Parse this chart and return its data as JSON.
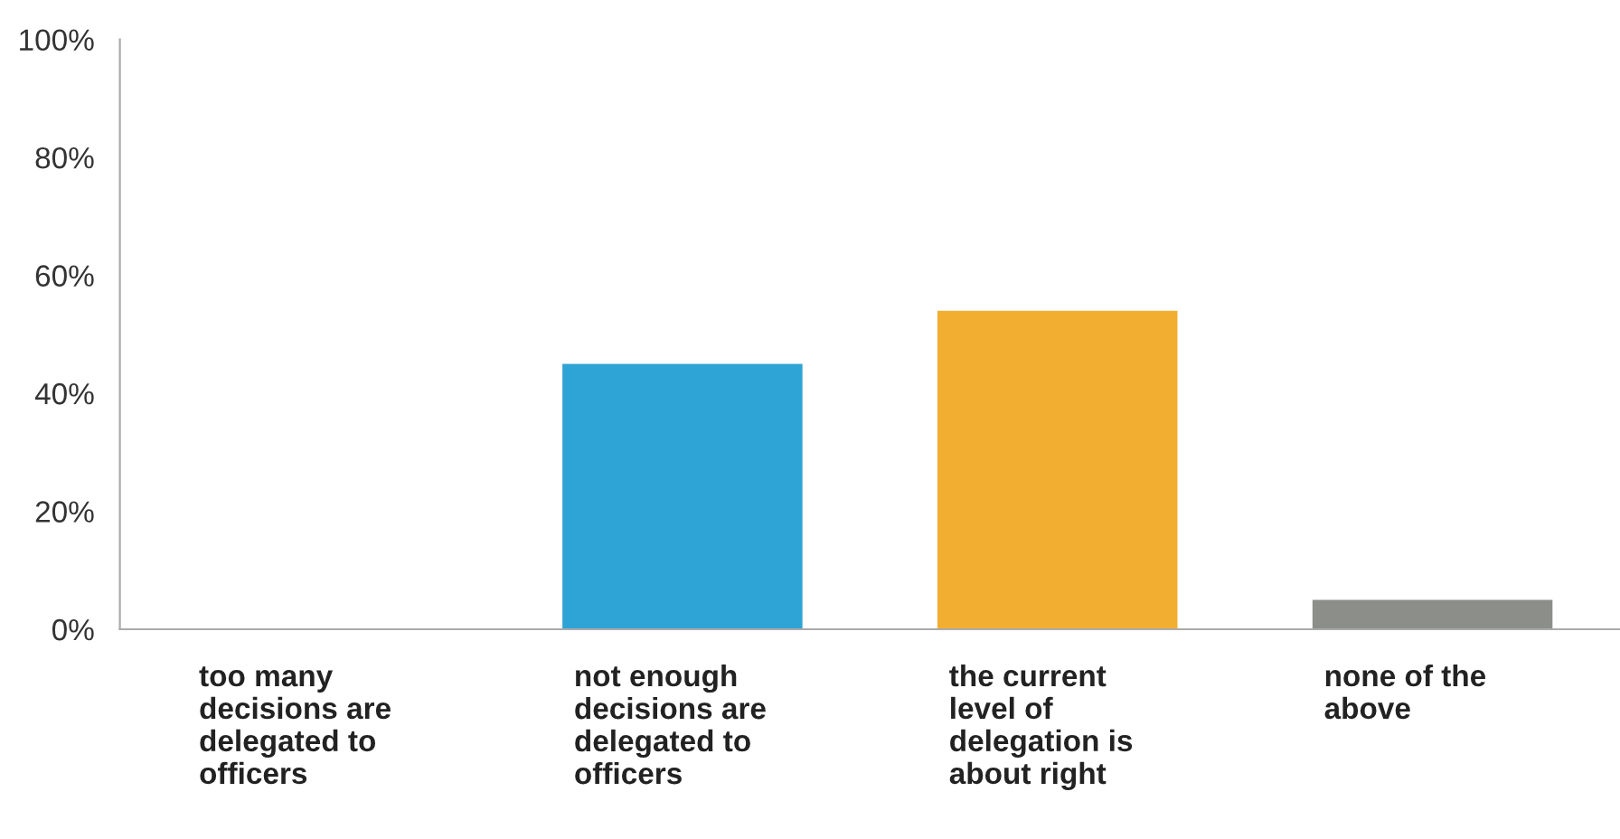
{
  "chart_data": {
    "type": "bar",
    "categories": [
      "too many\ndecisions are\ndelegated to\nofficers",
      "not enough\ndecisions are\ndelegated to\nofficers",
      "the current\nlevel of\ndelegation is\nabout right",
      "none of the\nabove"
    ],
    "values": [
      0,
      45,
      54,
      5
    ],
    "colors": [
      "#2ea3d5",
      "#2ea3d5",
      "#f2ae30",
      "#8c8e8a"
    ],
    "ylim": [
      0,
      100
    ],
    "yticks": [
      {
        "value": 0,
        "label": "0%"
      },
      {
        "value": 20,
        "label": "20%"
      },
      {
        "value": 40,
        "label": "40%"
      },
      {
        "value": 60,
        "label": "60%"
      },
      {
        "value": 80,
        "label": "80%"
      },
      {
        "value": 100,
        "label": "100%"
      }
    ],
    "grid": false
  }
}
